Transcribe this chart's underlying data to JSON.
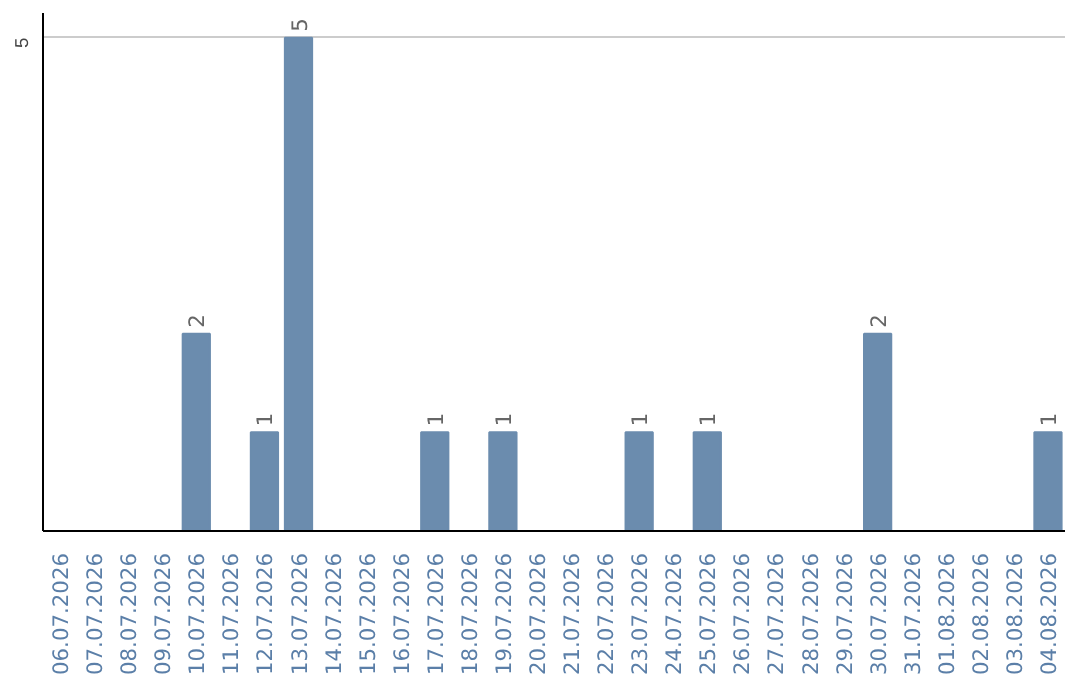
{
  "chart_data": {
    "type": "bar",
    "categories": [
      "06.07.2026",
      "07.07.2026",
      "08.07.2026",
      "09.07.2026",
      "10.07.2026",
      "11.07.2026",
      "12.07.2026",
      "13.07.2026",
      "14.07.2026",
      "15.07.2026",
      "16.07.2026",
      "17.07.2026",
      "18.07.2026",
      "19.07.2026",
      "20.07.2026",
      "21.07.2026",
      "22.07.2026",
      "23.07.2026",
      "24.07.2026",
      "25.07.2026",
      "26.07.2026",
      "27.07.2026",
      "28.07.2026",
      "29.07.2026",
      "30.07.2026",
      "31.07.2026",
      "01.08.2026",
      "02.08.2026",
      "03.08.2026",
      "04.08.2026"
    ],
    "values": [
      0,
      0,
      0,
      0,
      2,
      0,
      1,
      5,
      0,
      0,
      0,
      1,
      0,
      1,
      0,
      0,
      0,
      1,
      0,
      1,
      0,
      0,
      0,
      0,
      2,
      0,
      0,
      0,
      0,
      1
    ],
    "color": "#6b8cae",
    "ylim": [
      0,
      5.25
    ],
    "yticks": [
      5
    ],
    "grid": "y",
    "value_labels": [
      null,
      null,
      null,
      null,
      "2",
      null,
      "1",
      "5",
      null,
      null,
      null,
      "1",
      null,
      "1",
      null,
      null,
      null,
      "1",
      null,
      "1",
      null,
      null,
      null,
      null,
      "2",
      null,
      null,
      null,
      null,
      "1"
    ]
  }
}
